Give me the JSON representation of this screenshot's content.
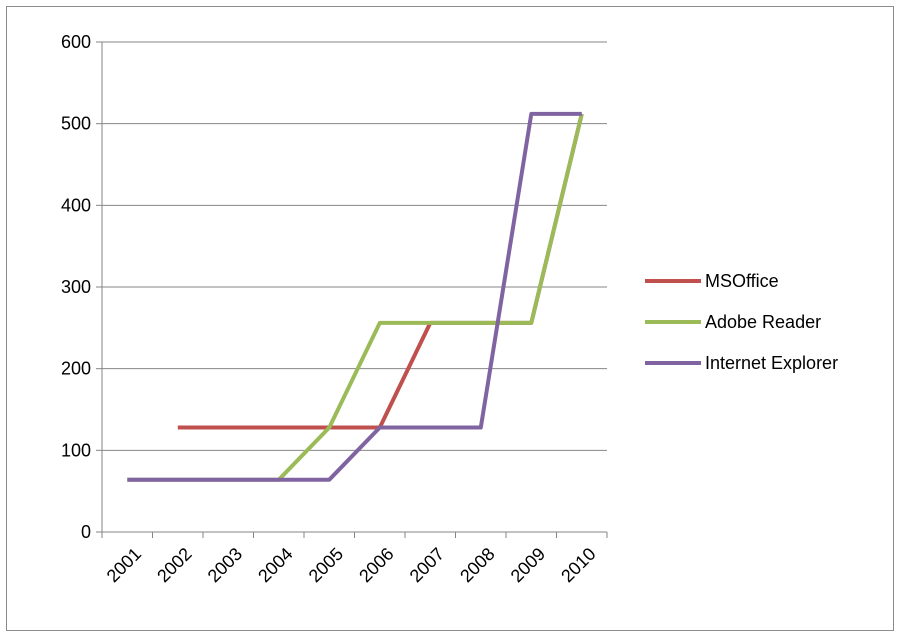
{
  "chart_data": {
    "type": "line",
    "title": "",
    "xlabel": "",
    "ylabel": "",
    "categories": [
      "2001",
      "2002",
      "2003",
      "2004",
      "2005",
      "2006",
      "2007",
      "2008",
      "2009",
      "2010"
    ],
    "ylim": [
      0,
      600
    ],
    "yticks": [
      0,
      100,
      200,
      300,
      400,
      500,
      600
    ],
    "grid": true,
    "legend_position": "right",
    "series": [
      {
        "name": "MSOffice",
        "color": "#c0504d",
        "values": [
          null,
          128,
          128,
          128,
          128,
          128,
          256,
          256,
          256,
          512
        ]
      },
      {
        "name": "Adobe Reader",
        "color": "#9bbb59",
        "values": [
          64,
          64,
          64,
          64,
          128,
          256,
          256,
          256,
          256,
          512
        ]
      },
      {
        "name": "Internet Explorer",
        "color": "#8064a2",
        "values": [
          64,
          64,
          64,
          64,
          64,
          128,
          128,
          128,
          512,
          512
        ]
      }
    ]
  }
}
